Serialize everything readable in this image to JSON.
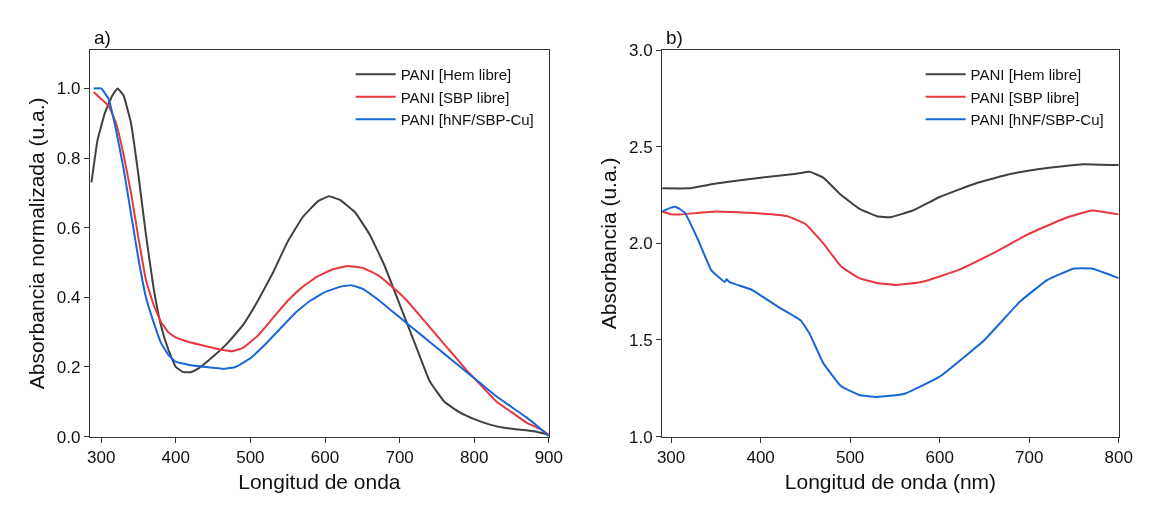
{
  "chart_data": [
    {
      "type": "line",
      "title": "a)",
      "xlabel": "Longitud de onda",
      "ylabel": "Absorbancia normalizada (u.a.)",
      "xlim": [
        285,
        900
      ],
      "ylim": [
        0,
        1.11
      ],
      "xticks": [
        300,
        400,
        500,
        600,
        700,
        800,
        900
      ],
      "yticks": [
        {
          "value": 0,
          "label": "0.0"
        },
        0.2,
        0.4,
        0.6,
        0.8,
        {
          "value": 1,
          "label": "1.0"
        }
      ],
      "legend": "top right",
      "grid": false,
      "line_style": "solid",
      "marker": "none",
      "series": [
        {
          "name": "PANI [Hem libre]",
          "color": "#404040",
          "x": [
            287,
            295,
            305,
            315,
            322,
            330,
            340,
            350,
            360,
            370,
            380,
            390,
            400,
            410,
            420,
            430,
            450,
            470,
            490,
            510,
            530,
            550,
            570,
            590,
            605,
            620,
            640,
            660,
            680,
            700,
            720,
            740,
            760,
            780,
            800,
            820,
            840,
            860,
            880,
            900
          ],
          "values": [
            0.73,
            0.85,
            0.93,
            0.98,
            1.0,
            0.98,
            0.9,
            0.75,
            0.58,
            0.43,
            0.32,
            0.25,
            0.2,
            0.185,
            0.185,
            0.195,
            0.23,
            0.27,
            0.32,
            0.39,
            0.47,
            0.56,
            0.63,
            0.675,
            0.69,
            0.68,
            0.645,
            0.58,
            0.49,
            0.38,
            0.27,
            0.16,
            0.1,
            0.07,
            0.05,
            0.035,
            0.025,
            0.02,
            0.015,
            0.005
          ]
        },
        {
          "name": "PANI [SBP libre]",
          "color": "#e8383d",
          "x": [
            290,
            300,
            310,
            320,
            330,
            340,
            350,
            360,
            370,
            380,
            390,
            400,
            420,
            440,
            460,
            475,
            490,
            510,
            530,
            550,
            570,
            590,
            610,
            630,
            650,
            670,
            690,
            710,
            730,
            750,
            770,
            790,
            810,
            830,
            850,
            870,
            890,
            900
          ],
          "values": [
            0.99,
            0.97,
            0.95,
            0.9,
            0.81,
            0.7,
            0.57,
            0.45,
            0.38,
            0.33,
            0.3,
            0.285,
            0.27,
            0.26,
            0.25,
            0.245,
            0.255,
            0.29,
            0.34,
            0.39,
            0.43,
            0.46,
            0.48,
            0.49,
            0.485,
            0.465,
            0.43,
            0.39,
            0.34,
            0.29,
            0.24,
            0.19,
            0.145,
            0.1,
            0.07,
            0.04,
            0.02,
            0.005
          ]
        },
        {
          "name": "PANI [hNF/SBP-Cu]",
          "color": "#1a66d9",
          "x": [
            290,
            300,
            310,
            320,
            330,
            340,
            350,
            360,
            370,
            380,
            390,
            400,
            420,
            440,
            465,
            480,
            500,
            520,
            540,
            560,
            580,
            600,
            620,
            635,
            650,
            670,
            690,
            710,
            730,
            750,
            770,
            790,
            810,
            830,
            850,
            870,
            890,
            900
          ],
          "values": [
            1.0,
            1.0,
            0.97,
            0.88,
            0.77,
            0.64,
            0.51,
            0.4,
            0.33,
            0.27,
            0.235,
            0.215,
            0.205,
            0.2,
            0.195,
            0.2,
            0.225,
            0.265,
            0.31,
            0.355,
            0.39,
            0.415,
            0.43,
            0.435,
            0.425,
            0.395,
            0.36,
            0.325,
            0.29,
            0.255,
            0.22,
            0.185,
            0.15,
            0.115,
            0.085,
            0.055,
            0.02,
            0.0
          ]
        }
      ]
    },
    {
      "type": "line",
      "title": "b)",
      "xlabel": "Longitud de onda (nm)",
      "ylabel": "Absorbancia (u.a.)",
      "xlim": [
        290,
        800
      ],
      "ylim": [
        1.0,
        3.0
      ],
      "xticks": [
        300,
        400,
        500,
        600,
        700,
        800
      ],
      "yticks": [
        {
          "value": 1,
          "label": "1.0"
        },
        1.5,
        {
          "value": 2,
          "label": "2.0"
        },
        2.5,
        {
          "value": 3,
          "label": "3.0"
        }
      ],
      "legend": "top right",
      "grid": false,
      "line_style": "solid",
      "marker": "none",
      "series": [
        {
          "name": "PANI [Hem libre]",
          "color": "#404040",
          "x": [
            290,
            320,
            350,
            400,
            440,
            455,
            470,
            490,
            510,
            530,
            545,
            570,
            600,
            640,
            680,
            720,
            760,
            800
          ],
          "values": [
            2.285,
            2.285,
            2.31,
            2.34,
            2.36,
            2.37,
            2.34,
            2.25,
            2.18,
            2.14,
            2.135,
            2.17,
            2.24,
            2.31,
            2.36,
            2.39,
            2.41,
            2.405
          ]
        },
        {
          "name": "PANI [SBP libre]",
          "color": "#e8383d",
          "x": [
            290,
            300,
            310,
            350,
            400,
            430,
            450,
            470,
            490,
            510,
            530,
            550,
            580,
            620,
            660,
            700,
            740,
            770,
            800
          ],
          "values": [
            2.165,
            2.15,
            2.15,
            2.165,
            2.155,
            2.14,
            2.1,
            2.0,
            1.88,
            1.82,
            1.795,
            1.785,
            1.8,
            1.86,
            1.95,
            2.05,
            2.13,
            2.17,
            2.15
          ]
        },
        {
          "name": "PANI [hNF/SBP-Cu]",
          "color": "#1a66d9",
          "x": [
            290,
            300,
            305,
            315,
            330,
            345,
            360,
            362,
            365,
            390,
            420,
            445,
            455,
            470,
            490,
            510,
            530,
            560,
            600,
            650,
            690,
            720,
            750,
            770,
            800
          ],
          "values": [
            2.165,
            2.185,
            2.19,
            2.16,
            2.02,
            1.86,
            1.8,
            1.815,
            1.8,
            1.76,
            1.67,
            1.6,
            1.53,
            1.38,
            1.26,
            1.215,
            1.205,
            1.22,
            1.31,
            1.5,
            1.7,
            1.81,
            1.87,
            1.87,
            1.82
          ]
        }
      ]
    }
  ]
}
